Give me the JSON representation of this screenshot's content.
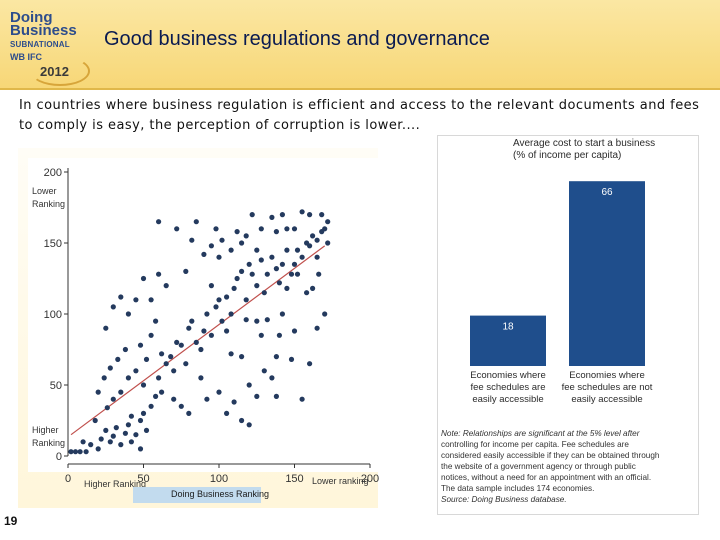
{
  "header": {
    "logo": {
      "line1": "Doing",
      "line2": "Business",
      "line3": "SUBNATIONAL",
      "line4": "WB IFC",
      "year": "2012"
    },
    "title": "Good business regulations and governance"
  },
  "subtitle": "In countries where business regulation is efficient and access to the relevant documents and fees to comply is easy, the perception of corruption is lower....",
  "slide_number": "19",
  "scatter": {
    "y_label_top": "Lower\nRanking",
    "y_label_bottom": "Higher\nRanking",
    "x_label_left": "Higher Ranking",
    "x_label_right": "Lower ranking",
    "x_title": "Doing Business Ranking"
  },
  "bar_panel": {
    "note_lines": [
      "Note: Relationships are significant at the 5% level after",
      "controlling for income per capita. Fee schedules are",
      "considered easily accessible if they can be obtained through",
      "the website of a government agency or through public",
      "notices, without a need for an appointment with an official.",
      "The data sample includes 174 economies.",
      "Source: Doing Business database."
    ]
  },
  "chart_data": [
    {
      "type": "scatter",
      "title": "",
      "xlabel": "Doing Business Ranking",
      "ylabel": "",
      "xlim": [
        0,
        200
      ],
      "ylim": [
        0,
        200
      ],
      "xticks": [
        0,
        50,
        100,
        150,
        200
      ],
      "yticks": [
        0,
        50,
        100,
        150,
        200
      ],
      "grid": false,
      "point_color": "#243a5e",
      "fit_line_color": "#c0504d",
      "fit_line": [
        [
          2,
          15
        ],
        [
          170,
          148
        ]
      ],
      "points": [
        [
          2,
          3
        ],
        [
          5,
          3
        ],
        [
          8,
          3
        ],
        [
          12,
          3
        ],
        [
          10,
          10
        ],
        [
          15,
          8
        ],
        [
          20,
          5
        ],
        [
          22,
          12
        ],
        [
          25,
          18
        ],
        [
          18,
          25
        ],
        [
          28,
          10
        ],
        [
          30,
          14
        ],
        [
          32,
          20
        ],
        [
          35,
          8
        ],
        [
          38,
          16
        ],
        [
          40,
          22
        ],
        [
          42,
          28
        ],
        [
          26,
          34
        ],
        [
          30,
          40
        ],
        [
          35,
          45
        ],
        [
          45,
          15
        ],
        [
          48,
          25
        ],
        [
          50,
          30
        ],
        [
          52,
          18
        ],
        [
          55,
          35
        ],
        [
          58,
          42
        ],
        [
          20,
          45
        ],
        [
          24,
          55
        ],
        [
          40,
          55
        ],
        [
          28,
          62
        ],
        [
          33,
          68
        ],
        [
          38,
          75
        ],
        [
          45,
          60
        ],
        [
          50,
          50
        ],
        [
          52,
          68
        ],
        [
          55,
          85
        ],
        [
          58,
          95
        ],
        [
          48,
          78
        ],
        [
          60,
          55
        ],
        [
          62,
          72
        ],
        [
          65,
          65
        ],
        [
          68,
          70
        ],
        [
          70,
          60
        ],
        [
          72,
          80
        ],
        [
          75,
          78
        ],
        [
          78,
          65
        ],
        [
          80,
          90
        ],
        [
          82,
          95
        ],
        [
          85,
          80
        ],
        [
          88,
          75
        ],
        [
          90,
          88
        ],
        [
          92,
          100
        ],
        [
          95,
          85
        ],
        [
          98,
          105
        ],
        [
          100,
          110
        ],
        [
          102,
          95
        ],
        [
          105,
          112
        ],
        [
          108,
          100
        ],
        [
          110,
          118
        ],
        [
          112,
          125
        ],
        [
          115,
          130
        ],
        [
          118,
          110
        ],
        [
          120,
          135
        ],
        [
          122,
          128
        ],
        [
          125,
          120
        ],
        [
          128,
          138
        ],
        [
          130,
          115
        ],
        [
          132,
          128
        ],
        [
          135,
          140
        ],
        [
          138,
          132
        ],
        [
          140,
          122
        ],
        [
          142,
          135
        ],
        [
          145,
          118
        ],
        [
          148,
          128
        ],
        [
          150,
          135
        ],
        [
          152,
          145
        ],
        [
          155,
          140
        ],
        [
          158,
          150
        ],
        [
          160,
          148
        ],
        [
          162,
          155
        ],
        [
          165,
          152
        ],
        [
          168,
          158
        ],
        [
          170,
          160
        ],
        [
          172,
          165
        ],
        [
          150,
          160
        ],
        [
          160,
          170
        ],
        [
          168,
          170
        ],
        [
          142,
          170
        ],
        [
          155,
          172
        ],
        [
          125,
          145
        ],
        [
          115,
          150
        ],
        [
          108,
          145
        ],
        [
          100,
          140
        ],
        [
          95,
          148
        ],
        [
          90,
          142
        ],
        [
          82,
          152
        ],
        [
          78,
          130
        ],
        [
          72,
          160
        ],
        [
          65,
          120
        ],
        [
          60,
          128
        ],
        [
          55,
          110
        ],
        [
          50,
          125
        ],
        [
          45,
          110
        ],
        [
          40,
          100
        ],
        [
          35,
          112
        ],
        [
          30,
          105
        ],
        [
          25,
          90
        ],
        [
          88,
          55
        ],
        [
          92,
          40
        ],
        [
          100,
          45
        ],
        [
          105,
          30
        ],
        [
          110,
          38
        ],
        [
          115,
          25
        ],
        [
          120,
          50
        ],
        [
          125,
          42
        ],
        [
          130,
          60
        ],
        [
          135,
          55
        ],
        [
          138,
          70
        ],
        [
          140,
          85
        ],
        [
          148,
          68
        ],
        [
          155,
          40
        ],
        [
          160,
          65
        ],
        [
          165,
          90
        ],
        [
          170,
          100
        ],
        [
          158,
          115
        ],
        [
          162,
          118
        ],
        [
          166,
          128
        ],
        [
          145,
          160
        ],
        [
          135,
          168
        ],
        [
          128,
          160
        ],
        [
          118,
          155
        ],
        [
          112,
          158
        ],
        [
          102,
          152
        ],
        [
          98,
          160
        ],
        [
          122,
          170
        ],
        [
          138,
          158
        ],
        [
          145,
          145
        ],
        [
          152,
          128
        ],
        [
          165,
          140
        ],
        [
          172,
          150
        ],
        [
          60,
          165
        ],
        [
          85,
          165
        ],
        [
          95,
          120
        ],
        [
          105,
          88
        ],
        [
          118,
          96
        ],
        [
          128,
          85
        ],
        [
          132,
          96
        ],
        [
          142,
          100
        ],
        [
          150,
          88
        ],
        [
          108,
          72
        ],
        [
          115,
          70
        ],
        [
          125,
          95
        ],
        [
          120,
          22
        ],
        [
          138,
          42
        ],
        [
          62,
          45
        ],
        [
          70,
          40
        ],
        [
          75,
          35
        ],
        [
          80,
          30
        ],
        [
          48,
          5
        ],
        [
          42,
          10
        ]
      ]
    },
    {
      "type": "bar",
      "title": "Average cost to start a business\n(% of income per capita)",
      "categories": [
        "Economies where fee schedules are easily accessible",
        "Economies where fee schedules are not easily accessible"
      ],
      "values": [
        18,
        66
      ],
      "ylim": [
        0,
        70
      ],
      "color": "#1f4e8c",
      "value_label_color": "#ffffff"
    }
  ]
}
